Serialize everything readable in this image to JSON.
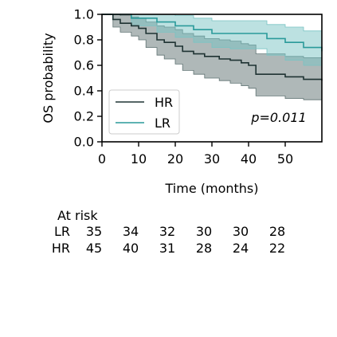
{
  "chart_data": {
    "type": "line",
    "subtype": "kaplan-meier",
    "xlabel": "Time (months)",
    "ylabel": "OS probability",
    "xlim": [
      0,
      60
    ],
    "ylim": [
      0,
      1
    ],
    "xticks": [
      "0",
      "10",
      "20",
      "30",
      "40",
      "50"
    ],
    "xtick_values": [
      0,
      10,
      20,
      30,
      40,
      50
    ],
    "yticks": [
      "0.0",
      "0.2",
      "0.4",
      "0.6",
      "0.8",
      "1.0"
    ],
    "ytick_values": [
      0,
      0.2,
      0.4,
      0.6,
      0.8,
      1.0
    ],
    "grid": false,
    "legend_position": "bottom-left",
    "annotation": "p=0.011",
    "series": [
      {
        "name": "HR",
        "color": "#1f3333",
        "band_color": "#5f7272",
        "x": [
          0,
          3,
          5,
          8,
          10,
          12,
          15,
          17,
          20,
          22,
          25,
          28,
          32,
          35,
          38,
          40,
          42,
          50,
          55,
          60
        ],
        "y": [
          1.0,
          0.96,
          0.93,
          0.91,
          0.89,
          0.85,
          0.8,
          0.78,
          0.75,
          0.71,
          0.69,
          0.67,
          0.65,
          0.64,
          0.62,
          0.6,
          0.53,
          0.51,
          0.49,
          0.48
        ],
        "lower": [
          1.0,
          0.9,
          0.86,
          0.83,
          0.8,
          0.74,
          0.68,
          0.65,
          0.61,
          0.56,
          0.53,
          0.5,
          0.48,
          0.46,
          0.44,
          0.42,
          0.36,
          0.34,
          0.33,
          0.32
        ],
        "upper": [
          1.0,
          1.0,
          0.99,
          0.98,
          0.97,
          0.94,
          0.91,
          0.9,
          0.88,
          0.85,
          0.83,
          0.81,
          0.8,
          0.79,
          0.77,
          0.76,
          0.69,
          0.67,
          0.66,
          0.65
        ]
      },
      {
        "name": "LR",
        "color": "#2a9a9a",
        "band_color": "#79c4c4",
        "x": [
          0,
          8,
          15,
          20,
          25,
          30,
          35,
          45,
          50,
          55,
          60
        ],
        "y": [
          1.0,
          0.97,
          0.94,
          0.91,
          0.88,
          0.85,
          0.85,
          0.81,
          0.78,
          0.74,
          0.71
        ],
        "lower": [
          1.0,
          0.91,
          0.86,
          0.82,
          0.78,
          0.74,
          0.73,
          0.68,
          0.64,
          0.6,
          0.56
        ],
        "upper": [
          1.0,
          1.0,
          1.0,
          0.99,
          0.97,
          0.95,
          0.95,
          0.92,
          0.9,
          0.87,
          0.84
        ]
      }
    ],
    "risk_table": {
      "title": "At risk",
      "rows": [
        {
          "label": "LR",
          "values": [
            "35",
            "34",
            "32",
            "30",
            "30",
            "28"
          ]
        },
        {
          "label": "HR",
          "values": [
            "45",
            "40",
            "31",
            "28",
            "24",
            "22"
          ]
        }
      ]
    }
  }
}
